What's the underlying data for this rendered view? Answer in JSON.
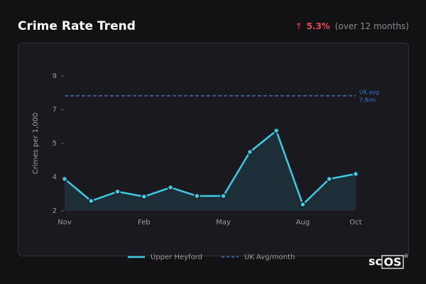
{
  "chart_data": {
    "type": "line",
    "title": "Crime Rate Trend",
    "change_arrow": "↑",
    "change_value": "5.3%",
    "change_note": "(over 12 months)",
    "y_label": "Crimes per 1,000",
    "categories": [
      "Nov",
      null,
      null,
      "Feb",
      null,
      null,
      "May",
      null,
      null,
      "Aug",
      null,
      "Oct"
    ],
    "series": [
      {
        "name": "Upper Heyford",
        "color": "#3ec9e6",
        "values": [
          3.61,
          2.5,
          2.97,
          2.72,
          3.18,
          2.75,
          2.75,
          4.97,
          6.04,
          2.32,
          3.61,
          3.86
        ]
      }
    ],
    "reference": {
      "name": "UK Avg/month",
      "color": "#3b6fd6",
      "value": 7.8,
      "annotation": [
        "UK avg",
        "7.8/m"
      ]
    },
    "ylim": [
      2,
      9
    ],
    "yticks": [
      2,
      {
        "value": 3.7,
        "label": "4"
      },
      {
        "value": 5.4,
        "label": "5"
      },
      {
        "value": 7.1,
        "label": "7"
      },
      {
        "value": 8.8,
        "label": "9"
      }
    ],
    "watermark": [
      "sc",
      "OS",
      "®"
    ]
  }
}
